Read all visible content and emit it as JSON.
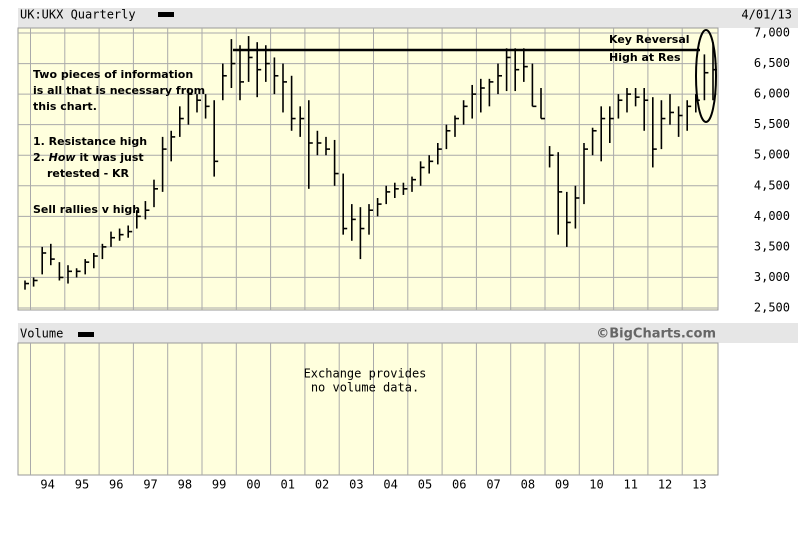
{
  "chart_data": {
    "type": "ohlc",
    "title": "UK:UKX Quarterly",
    "date": "4/01/13",
    "source": "©BigCharts.com",
    "volume_title": "Volume",
    "volume_note": [
      "Exchange provides",
      "no volume data."
    ],
    "color": "#000000",
    "grid": true,
    "ylim": [
      2467,
      7082
    ],
    "yticks": [
      {
        "value": 2500,
        "label": "2,500"
      },
      {
        "value": 3000,
        "label": "3,000"
      },
      {
        "value": 3500,
        "label": "3,500"
      },
      {
        "value": 4000,
        "label": "4,000"
      },
      {
        "value": 4500,
        "label": "4,500"
      },
      {
        "value": 5000,
        "label": "5,000"
      },
      {
        "value": 5500,
        "label": "5,500"
      },
      {
        "value": 6000,
        "label": "6,000"
      },
      {
        "value": 6500,
        "label": "6,500"
      },
      {
        "value": 7000,
        "label": "7,000"
      }
    ],
    "x_labels": [
      "94",
      "95",
      "96",
      "97",
      "98",
      "99",
      "00",
      "01",
      "02",
      "03",
      "04",
      "05",
      "06",
      "07",
      "08",
      "09",
      "10",
      "11",
      "12",
      "13"
    ],
    "high": [
      2950,
      3000,
      3500,
      3550,
      3250,
      3200,
      3150,
      3300,
      3400,
      3550,
      3750,
      3800,
      3850,
      4100,
      4250,
      4600,
      5300,
      5400,
      5800,
      6100,
      6000,
      6000,
      5900,
      6500,
      6900,
      6800,
      6950,
      6850,
      6800,
      6600,
      6500,
      6300,
      5800,
      5900,
      5400,
      5300,
      5250,
      4700,
      4200,
      4150,
      4200,
      4300,
      4500,
      4550,
      4550,
      4650,
      4900,
      5000,
      5200,
      5500,
      5650,
      5900,
      6150,
      6250,
      6250,
      6500,
      6750,
      6750,
      6750,
      6500,
      6100,
      5150,
      5050,
      4400,
      4500,
      5200,
      5450,
      5800,
      5800,
      6000,
      6100,
      6100,
      6100,
      5950,
      5900,
      6000,
      5800,
      5900,
      6000,
      6650,
      6850
    ],
    "low": [
      2800,
      2850,
      3050,
      3200,
      2950,
      2900,
      3000,
      3050,
      3150,
      3300,
      3500,
      3600,
      3650,
      3800,
      3950,
      4150,
      4400,
      4900,
      5300,
      5500,
      5700,
      5600,
      4650,
      5900,
      6100,
      5900,
      6200,
      5950,
      6200,
      6000,
      5700,
      5400,
      5300,
      4450,
      5000,
      5000,
      4500,
      3700,
      3600,
      3300,
      3700,
      4000,
      4200,
      4300,
      4350,
      4400,
      4500,
      4700,
      4850,
      5100,
      5300,
      5500,
      5600,
      5700,
      5800,
      6000,
      6050,
      6050,
      6200,
      5800,
      5600,
      4800,
      3700,
      3500,
      3800,
      4200,
      5000,
      4900,
      5200,
      5600,
      5700,
      5800,
      5400,
      4800,
      5100,
      5500,
      5300,
      5400,
      5700,
      5900,
      5900
    ],
    "close": [
      2900,
      2950,
      3400,
      3300,
      3000,
      3100,
      3100,
      3250,
      3350,
      3500,
      3650,
      3700,
      3750,
      4000,
      4100,
      4450,
      5100,
      5300,
      5600,
      6000,
      5900,
      5800,
      4900,
      6300,
      6500,
      6200,
      6600,
      6400,
      6500,
      6300,
      6200,
      5600,
      5600,
      5200,
      5200,
      5100,
      4700,
      3800,
      3950,
      3800,
      4100,
      4200,
      4400,
      4450,
      4450,
      4600,
      4800,
      4900,
      5100,
      5400,
      5600,
      5800,
      6000,
      6100,
      6200,
      6300,
      6600,
      6400,
      6450,
      5800,
      5600,
      5000,
      4400,
      3900,
      4300,
      5100,
      5400,
      5600,
      5600,
      5900,
      6000,
      5950,
      5900,
      5100,
      5600,
      5700,
      5650,
      5800,
      5900,
      6350,
      6400
    ]
  },
  "annotations": {
    "intro": [
      "Two pieces of information",
      "is all that is necessary from",
      "this chart."
    ],
    "point1": "1. Resistance high",
    "point2": [
      "2. ",
      "How",
      " it was just"
    ],
    "point2b": "retested -  KR",
    "advice": "Sell rallies v high",
    "reversal": [
      "Key Reversal",
      "High at Res"
    ]
  }
}
